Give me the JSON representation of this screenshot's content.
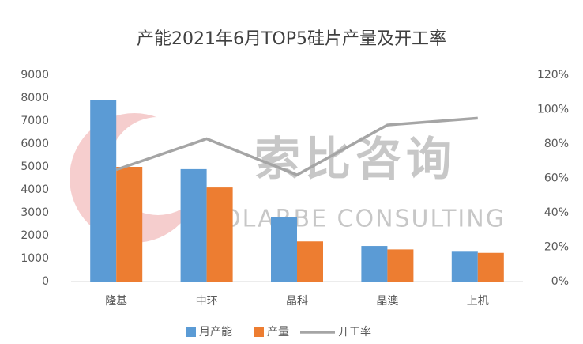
{
  "chart_data": {
    "type": "bar",
    "title": "产能2021年6月TOP5硅片产量及开工率",
    "watermark": [
      "索比咨询",
      "SOLARBE CONSULTING"
    ],
    "categories": [
      "隆基",
      "中环",
      "晶科",
      "晶澳",
      "上机"
    ],
    "series": [
      {
        "name": "月产能",
        "type": "bar",
        "color": "#5b9bd5",
        "values": [
          7900,
          4900,
          2800,
          1550,
          1300
        ]
      },
      {
        "name": "产量",
        "type": "bar",
        "color": "#ed7d31",
        "values": [
          5000,
          4100,
          1750,
          1400,
          1250
        ]
      },
      {
        "name": "开工率",
        "type": "line",
        "axis": "y2",
        "color": "#a5a5a5",
        "values": [
          65,
          83,
          62,
          91,
          95
        ]
      }
    ],
    "ylim": [
      0,
      9000
    ],
    "yticks": [
      0,
      1000,
      2000,
      3000,
      4000,
      5000,
      6000,
      7000,
      8000,
      9000
    ],
    "y2lim": [
      0,
      120
    ],
    "y2ticks": [
      {
        "value": 0,
        "label": "0%"
      },
      {
        "value": 20,
        "label": "20%"
      },
      {
        "value": 40,
        "label": "40%"
      },
      {
        "value": 60,
        "label": "60%"
      },
      {
        "value": 80,
        "label": "80%"
      },
      {
        "value": 100,
        "label": "100%"
      },
      {
        "value": 120,
        "label": "120%"
      }
    ],
    "grid": false,
    "legend": "bottom"
  }
}
